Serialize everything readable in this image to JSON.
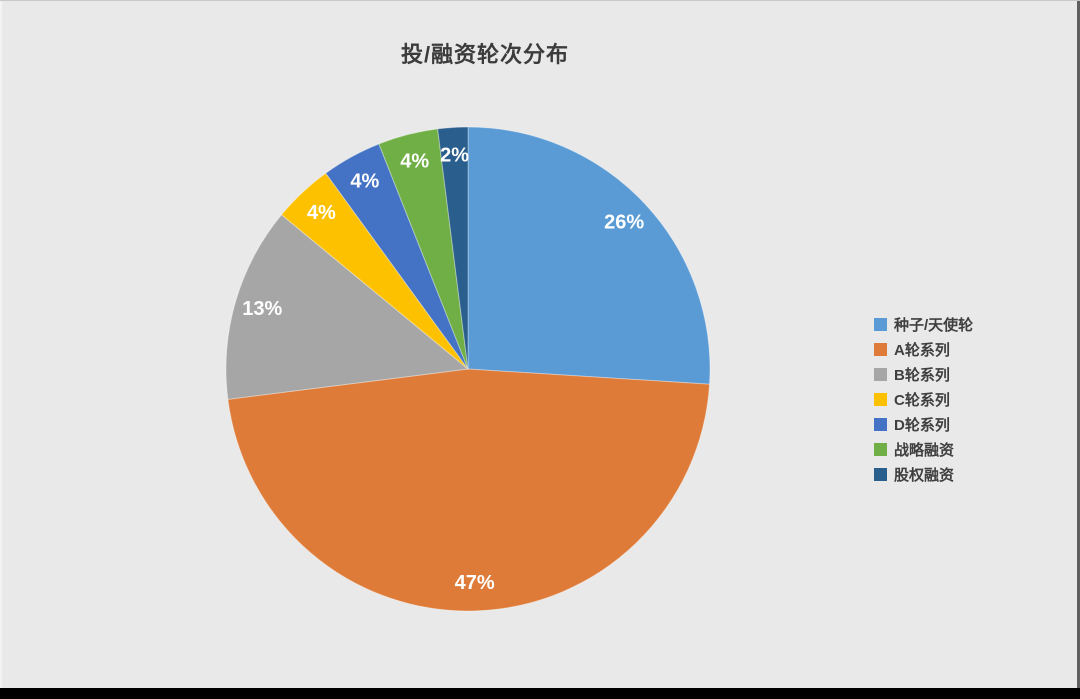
{
  "page": {
    "background_color": "#e9e9ea",
    "bottom_bar_color": "#000000"
  },
  "chart_data": {
    "type": "pie",
    "title": "投/融资轮次分布",
    "title_color": "#3c3c3c",
    "start_angle_deg": 0,
    "direction": "clockwise",
    "legend_position": "right",
    "data_label_color": "#ffffff",
    "data_label_radius_fraction": 0.885,
    "series": [
      {
        "name": "种子/天使轮",
        "value": 26,
        "label": "26%",
        "color": "#5b9bd5"
      },
      {
        "name": "A轮系列",
        "value": 47,
        "label": "47%",
        "color": "#de7b38"
      },
      {
        "name": "B轮系列",
        "value": 13,
        "label": "13%",
        "color": "#a6a6a6"
      },
      {
        "name": "C轮系列",
        "value": 4,
        "label": "4%",
        "color": "#fdc100"
      },
      {
        "name": "D轮系列",
        "value": 4,
        "label": "4%",
        "color": "#4472c4"
      },
      {
        "name": "战略融资",
        "value": 4,
        "label": "4%",
        "color": "#6faf46"
      },
      {
        "name": "股权融资",
        "value": 2,
        "label": "2%",
        "color": "#2a5e8c"
      }
    ]
  }
}
